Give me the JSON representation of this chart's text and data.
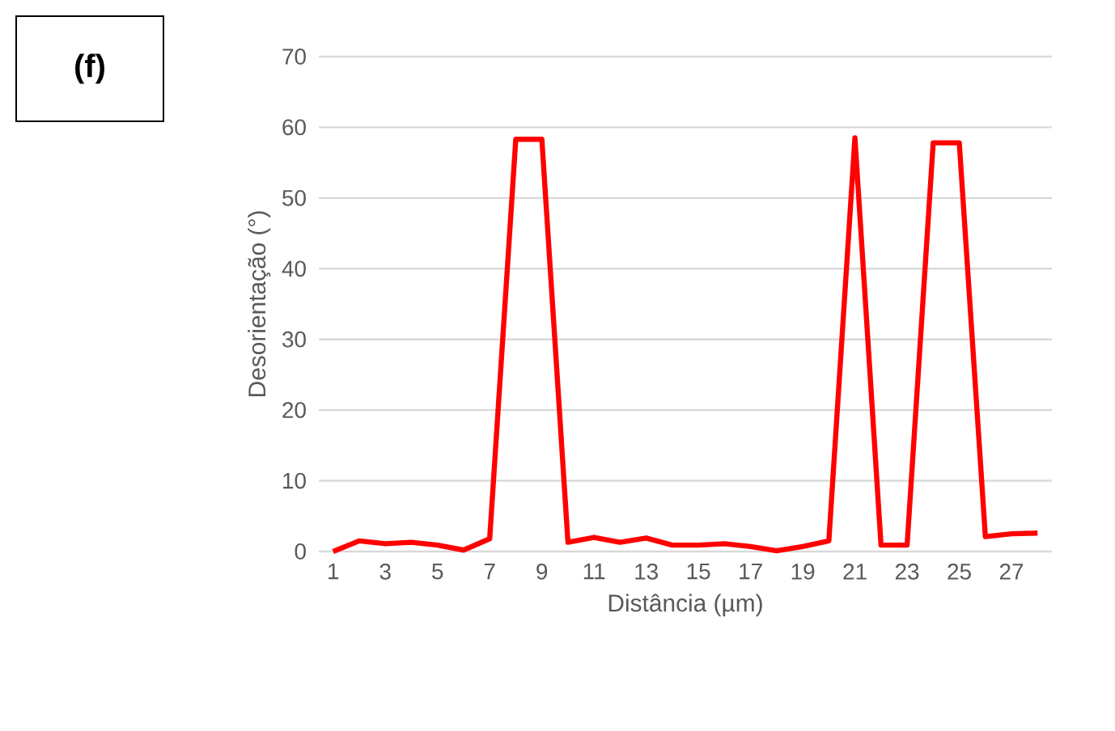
{
  "chart_data": {
    "type": "line",
    "xlabel": "Distância (µm)",
    "ylabel": "Desorientação (°)",
    "annotations": [
      "(f)"
    ],
    "categories": [
      "1",
      null,
      "3",
      null,
      "5",
      null,
      "7",
      null,
      "9",
      null,
      "11",
      null,
      "13",
      null,
      "15",
      null,
      "17",
      null,
      "19",
      null,
      "21",
      null,
      "23",
      null,
      "25",
      null,
      "27",
      null
    ],
    "series": [
      {
        "color": "#ff0000",
        "values": [
          0,
          1.5,
          1.1,
          1.3,
          0.9,
          0.2,
          1.8,
          58.3,
          58.3,
          1.3,
          2.0,
          1.3,
          1.9,
          0.9,
          0.9,
          1.1,
          0.7,
          0.1,
          0.7,
          1.5,
          58.5,
          0.9,
          0.9,
          57.8,
          57.8,
          2.1,
          2.5,
          2.6
        ]
      }
    ],
    "ylim": [
      0,
      70
    ],
    "yticks": [
      0,
      10,
      20,
      30,
      40,
      50,
      60,
      70
    ],
    "grid": "y",
    "marker": "none",
    "line_style": "solid"
  }
}
